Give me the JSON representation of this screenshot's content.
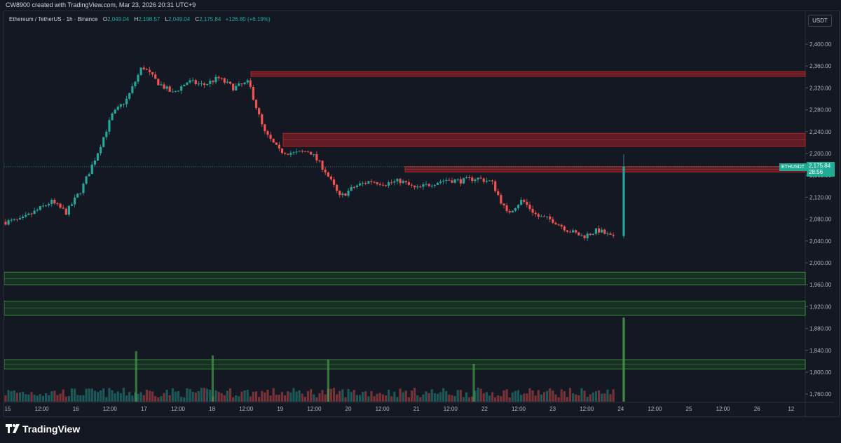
{
  "header": {
    "created_by": "CW8900 created with TradingView.com, Mar 23, 2026 20:31 UTC+9"
  },
  "legend": {
    "symbol": "Ethereum / TetherUS · 1h · Binance",
    "o_label": "O",
    "o": "2,049.04",
    "h_label": "H",
    "h": "2,198.57",
    "l_label": "L",
    "l": "2,049.04",
    "c_label": "C",
    "c": "2,175.84",
    "change": "+126.80 (+6.19%)"
  },
  "currency": "USDT",
  "last_price": {
    "ticker": "ETHUSDT",
    "price": "2,175.84",
    "countdown": "28:56"
  },
  "brand": {
    "name": "TradingView"
  },
  "colors": {
    "up": "#26a69a",
    "down": "#ef5350",
    "supply_zone": "#b2262f",
    "demand_zone": "#2e7d32",
    "accent": "#22ab94"
  },
  "chart_data": {
    "type": "candlestick",
    "timeframe": "1h",
    "y_ticks": [
      "2,400.00",
      "2,360.00",
      "2,320.00",
      "2,280.00",
      "2,240.00",
      "2,200.00",
      "2,160.00",
      "2,120.00",
      "2,080.00",
      "2,040.00",
      "2,000.00",
      "1,960.00",
      "1,920.00",
      "1,880.00",
      "1,840.00",
      "1,800.00",
      "1,760.00"
    ],
    "x_ticks": [
      "15",
      "12:00",
      "16",
      "12:00",
      "17",
      "12:00",
      "18",
      "12:00",
      "19",
      "12:00",
      "20",
      "12:00",
      "21",
      "12:00",
      "22",
      "12:00",
      "23",
      "12:00",
      "24",
      "12:00",
      "25",
      "12:00",
      "26",
      "12"
    ],
    "ylim": [
      1750,
      2420
    ],
    "current_price": 2175.84,
    "supply_zones": [
      {
        "from_x": 0.56,
        "y1": 2341,
        "y2": 2350
      },
      {
        "from_x": 0.63,
        "y1": 2213,
        "y2": 2237
      },
      {
        "from_x": 0.7,
        "y1": 2166,
        "y2": 2176
      }
    ],
    "demand_zones": [
      {
        "y1": 1960,
        "y2": 1983
      },
      {
        "y1": 1904,
        "y2": 1930
      },
      {
        "y1": 1806,
        "y2": 1823
      }
    ],
    "price_path": [
      [
        0.0,
        2075
      ],
      [
        1.0,
        2078
      ],
      [
        2.0,
        2095
      ],
      [
        3.0,
        2112
      ],
      [
        4.0,
        2092
      ],
      [
        5.0,
        2135
      ],
      [
        6.0,
        2198
      ],
      [
        7.0,
        2270
      ],
      [
        8.0,
        2300
      ],
      [
        9.0,
        2360
      ],
      [
        10.0,
        2330
      ],
      [
        11.0,
        2310
      ],
      [
        12.0,
        2332
      ],
      [
        13.0,
        2325
      ],
      [
        14.0,
        2338
      ],
      [
        15.0,
        2320
      ],
      [
        16.0,
        2330
      ],
      [
        17.0,
        2240
      ],
      [
        18.0,
        2205
      ],
      [
        19.0,
        2200
      ],
      [
        20.0,
        2205
      ],
      [
        21.0,
        2170
      ],
      [
        22.0,
        2120
      ],
      [
        23.0,
        2140
      ],
      [
        24.0,
        2150
      ],
      [
        25.0,
        2145
      ],
      [
        26.0,
        2150
      ],
      [
        27.0,
        2135
      ],
      [
        28.0,
        2145
      ],
      [
        29.0,
        2152
      ],
      [
        30.0,
        2150
      ],
      [
        31.0,
        2155
      ],
      [
        32.0,
        2148
      ],
      [
        33.0,
        2090
      ],
      [
        34.0,
        2115
      ],
      [
        35.0,
        2085
      ],
      [
        36.0,
        2078
      ],
      [
        37.0,
        2060
      ],
      [
        38.0,
        2048
      ],
      [
        39.0,
        2060
      ],
      [
        40.0,
        2045
      ],
      [
        40.5,
        2176
      ]
    ],
    "volume_spikes": [
      {
        "x": 8.7,
        "v": 0.6
      },
      {
        "x": 13.8,
        "v": 0.55
      },
      {
        "x": 21.5,
        "v": 0.5
      },
      {
        "x": 31.2,
        "v": 0.45
      },
      {
        "x": 40.5,
        "v": 1.0
      }
    ]
  }
}
